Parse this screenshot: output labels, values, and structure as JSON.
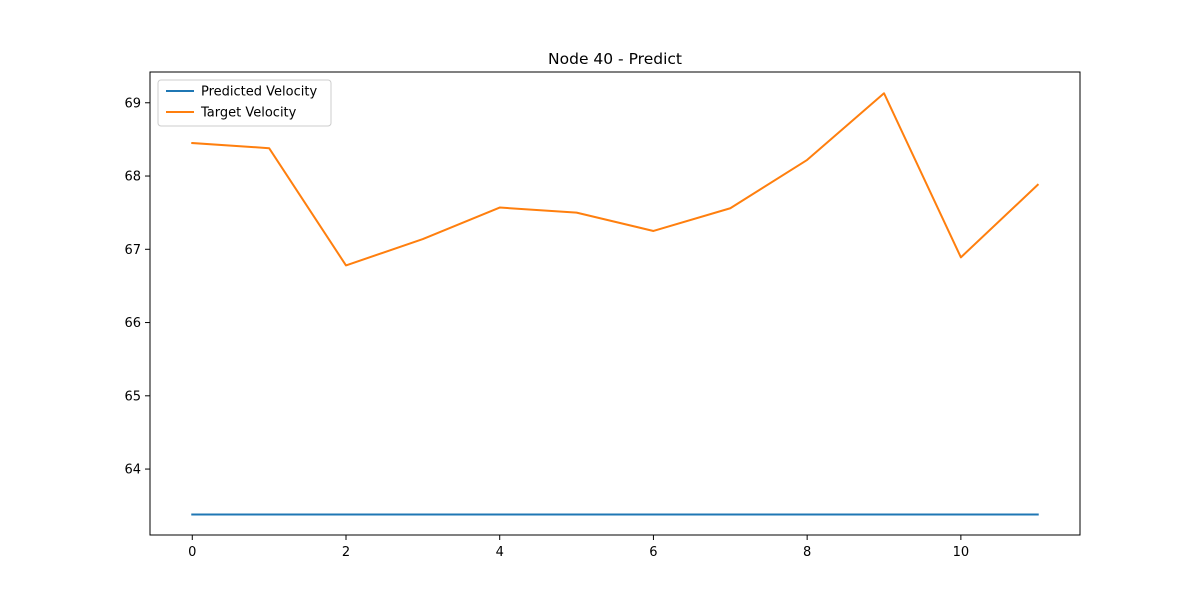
{
  "chart_data": {
    "type": "line",
    "title": "Node 40 - Predict",
    "xlabel": "",
    "ylabel": "",
    "x": [
      0,
      1,
      2,
      3,
      4,
      5,
      6,
      7,
      8,
      9,
      10,
      11
    ],
    "series": [
      {
        "name": "Predicted Velocity",
        "color": "#1f77b4",
        "values": [
          63.38,
          63.38,
          63.38,
          63.38,
          63.38,
          63.38,
          63.38,
          63.38,
          63.38,
          63.38,
          63.38,
          63.38
        ]
      },
      {
        "name": "Target Velocity",
        "color": "#ff7f0e",
        "values": [
          68.45,
          68.38,
          66.78,
          67.14,
          67.57,
          67.5,
          67.25,
          67.56,
          68.22,
          69.13,
          66.89,
          67.88
        ]
      }
    ],
    "xlim": [
      -0.55,
      11.55
    ],
    "ylim": [
      63.1,
      69.42
    ],
    "xticks": [
      0,
      2,
      4,
      6,
      8,
      10
    ],
    "yticks": [
      64,
      65,
      66,
      67,
      68,
      69
    ],
    "grid": false,
    "legend_position": "upper-left"
  }
}
